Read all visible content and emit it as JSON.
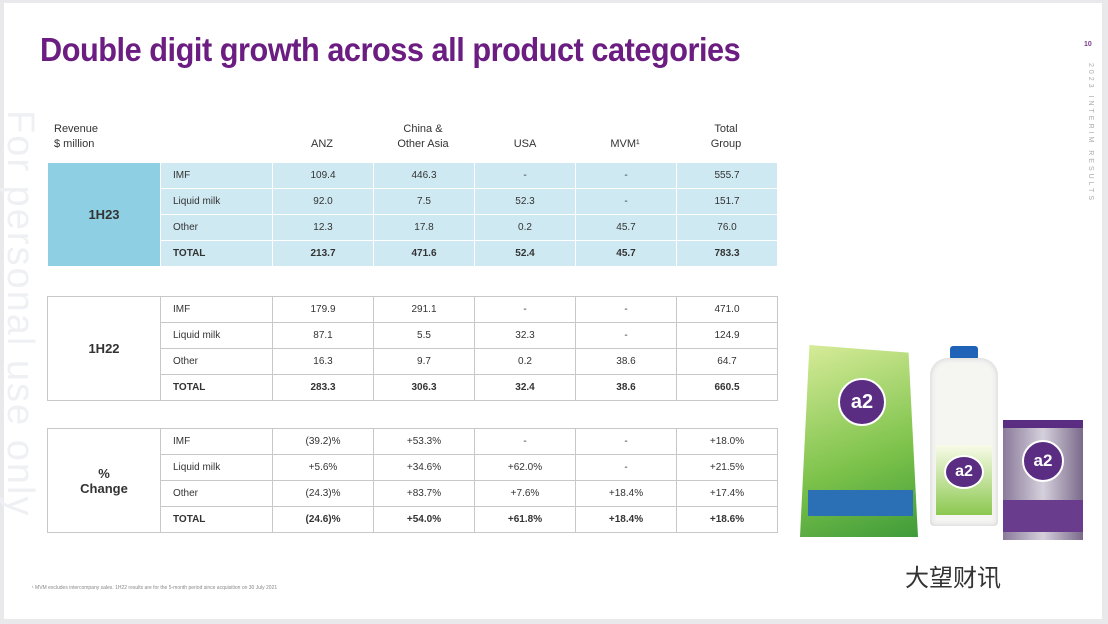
{
  "title": "Double digit growth across all product categories",
  "page_number": "10",
  "side_label": "2023 INTERIM RESULTS",
  "watermark": "For personal use only",
  "header": {
    "row_label": "Revenue\n$ million",
    "columns": [
      "ANZ",
      "China &\nOther Asia",
      "USA",
      "MVM¹",
      "Total\nGroup"
    ]
  },
  "blocks": [
    {
      "label": "1H23",
      "rows": [
        {
          "cat": "IMF",
          "v": [
            "109.4",
            "446.3",
            "-",
            "-",
            "555.7"
          ]
        },
        {
          "cat": "Liquid milk",
          "v": [
            "92.0",
            "7.5",
            "52.3",
            "-",
            "151.7"
          ]
        },
        {
          "cat": "Other",
          "v": [
            "12.3",
            "17.8",
            "0.2",
            "45.7",
            "76.0"
          ]
        },
        {
          "cat": "TOTAL",
          "v": [
            "213.7",
            "471.6",
            "52.4",
            "45.7",
            "783.3"
          ]
        }
      ]
    },
    {
      "label": "1H22",
      "rows": [
        {
          "cat": "IMF",
          "v": [
            "179.9",
            "291.1",
            "-",
            "-",
            "471.0"
          ]
        },
        {
          "cat": "Liquid milk",
          "v": [
            "87.1",
            "5.5",
            "32.3",
            "-",
            "124.9"
          ]
        },
        {
          "cat": "Other",
          "v": [
            "16.3",
            "9.7",
            "0.2",
            "38.6",
            "64.7"
          ]
        },
        {
          "cat": "TOTAL",
          "v": [
            "283.3",
            "306.3",
            "32.4",
            "38.6",
            "660.5"
          ]
        }
      ]
    },
    {
      "label": "%\nChange",
      "rows": [
        {
          "cat": "IMF",
          "v": [
            "(39.2)%",
            "+53.3%",
            "-",
            "-",
            "+18.0%"
          ]
        },
        {
          "cat": "Liquid milk",
          "v": [
            "+5.6%",
            "+34.6%",
            "+62.0%",
            "-",
            "+21.5%"
          ]
        },
        {
          "cat": "Other",
          "v": [
            "(24.3)%",
            "+83.7%",
            "+7.6%",
            "+18.4%",
            "+17.4%"
          ]
        },
        {
          "cat": "TOTAL",
          "v": [
            "(24.6)%",
            "+54.0%",
            "+61.8%",
            "+18.4%",
            "+18.6%"
          ]
        }
      ]
    }
  ],
  "footnote": "¹ MVM excludes intercompany sales. 1H22 results are for the 5-month period since acquisition on 30 July 2021",
  "product_logo": "a2",
  "source_watermark": "大望财讯",
  "colors": {
    "title": "#6b1d82",
    "band_light": "#cfe9f2",
    "band_dark": "#8ecfe3",
    "brand_purple": "#5a2d82"
  }
}
